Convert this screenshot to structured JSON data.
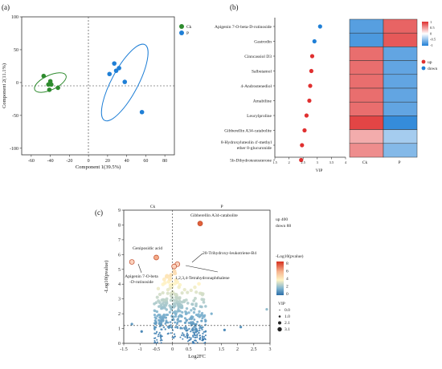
{
  "panels": {
    "a": "(a)",
    "b": "(b)",
    "c": "(c)"
  },
  "colors": {
    "ck": "#2e8b2e",
    "p": "#1f7fd6",
    "up": "#e03030",
    "down": "#1f7fd6",
    "orange": "#e0603a"
  },
  "chart_data": [
    {
      "type": "scatter",
      "panel": "a",
      "xlabel": "Component 1(39.5%)",
      "ylabel": "Component 2(11.1%)",
      "xlim": [
        -70,
        90
      ],
      "ylim": [
        -110,
        100
      ],
      "xticks": [
        -60,
        -40,
        -20,
        0,
        20,
        40,
        60,
        80
      ],
      "yticks": [
        -100,
        -50,
        0,
        50,
        100
      ],
      "legend": [
        "Ck",
        "P"
      ],
      "legend_position": "top-right outside",
      "series": [
        {
          "name": "Ck",
          "points": [
            [
              -47,
              10
            ],
            [
              -42,
              -3
            ],
            [
              -41,
              -11
            ],
            [
              -32,
              -8
            ],
            [
              -40,
              2
            ],
            [
              -39,
              -3
            ]
          ]
        },
        {
          "name": "P",
          "points": [
            [
              27,
              29
            ],
            [
              29,
              18
            ],
            [
              22,
              13
            ],
            [
              38,
              1
            ],
            [
              56,
              -45
            ],
            [
              32,
              22
            ]
          ]
        }
      ],
      "ellipses": [
        {
          "series": "Ck",
          "cx": -40,
          "cy": 0,
          "rx": 18,
          "ry": 11,
          "angle_deg": -25
        },
        {
          "series": "P",
          "cx": 38,
          "cy": 0,
          "rx": 45,
          "ry": 20,
          "angle_deg": -62
        }
      ]
    },
    {
      "type": "scatter",
      "panel": "b-vip",
      "xlabel": "VIP",
      "xlim": [
        1.5,
        4
      ],
      "xticks": [
        1.5,
        2,
        2.5,
        3,
        3.5,
        4
      ],
      "categories": [
        "Apigenin 7-O-beta-D-rutinoside",
        "Gastrodin",
        "Cinncassiol D3",
        "Salbutamol",
        "4-Androstenediol",
        "Amabiline",
        "Leucylproline",
        "Gibberellin A34-catabolite",
        "8-Hydroxyluteolin 4'-methyl ether 8-glucuronide",
        "5b-Dihydrotestosterone"
      ],
      "values": [
        3.1,
        2.9,
        2.82,
        2.79,
        2.75,
        2.72,
        2.62,
        2.55,
        2.46,
        2.43
      ],
      "direction": [
        "down",
        "down",
        "up",
        "up",
        "up",
        "up",
        "up",
        "up",
        "up",
        "up"
      ],
      "legend": [
        "up",
        "down"
      ]
    },
    {
      "type": "heatmap",
      "panel": "b-heat",
      "columns": [
        "Ck",
        "P"
      ],
      "values": [
        [
          -0.75,
          0.75
        ],
        [
          -0.8,
          0.8
        ],
        [
          0.7,
          -0.7
        ],
        [
          0.7,
          -0.7
        ],
        [
          0.7,
          -0.7
        ],
        [
          0.7,
          -0.7
        ],
        [
          0.7,
          -0.7
        ],
        [
          0.9,
          -0.9
        ],
        [
          0.4,
          -0.4
        ],
        [
          0.55,
          -0.55
        ]
      ],
      "colorbar_ticks": [
        "1",
        "0.5",
        "0",
        "-0.5",
        "-1"
      ]
    },
    {
      "type": "scatter",
      "panel": "c",
      "xlabel": "Log2FC",
      "ylabel": "-Log10(pvalue)",
      "xlim": [
        -1.5,
        3
      ],
      "ylim": [
        0,
        9
      ],
      "xticks": [
        -1.5,
        -1,
        -0.5,
        0,
        0.5,
        1,
        1.5,
        2,
        2.5,
        3
      ],
      "yticks": [
        0,
        1,
        2,
        3,
        4,
        5,
        6,
        7,
        8,
        9
      ],
      "threshold_y": 1.3,
      "threshold_x": 0,
      "top_labels": {
        "left": "Ck",
        "right": "P"
      },
      "summary": {
        "up": "up 400",
        "down": "down 88"
      },
      "highlighted": [
        {
          "label": "Gibberellin A34-catabolite",
          "x": 0.85,
          "y": 8.1,
          "color": "#e0603a"
        },
        {
          "label": "Geniposidic acid",
          "x": -0.5,
          "y": 5.8,
          "color": "#f5ac88"
        },
        {
          "label": "20-Trihydroxy-leukotriene-B4",
          "x": 0.15,
          "y": 5.35,
          "color": "#fbd2bd"
        },
        {
          "label": "1,2,3,4-Tetrahydronaphthalene",
          "x": 0.05,
          "y": 5.2,
          "color": "#fbd2bd"
        },
        {
          "label": "Apigenin 7-O-beta -D-rutinoside",
          "x": -1.25,
          "y": 5.5,
          "color": "#fbd2bd"
        }
      ],
      "colorbar": {
        "title": "-Log10(pvalue)",
        "ticks": [
          "8",
          "6",
          "4",
          "2",
          "0"
        ]
      },
      "size_legend": {
        "title": "VIP",
        "ticks": [
          "0.0",
          "1.0",
          "2.1",
          "3.1"
        ]
      }
    }
  ]
}
